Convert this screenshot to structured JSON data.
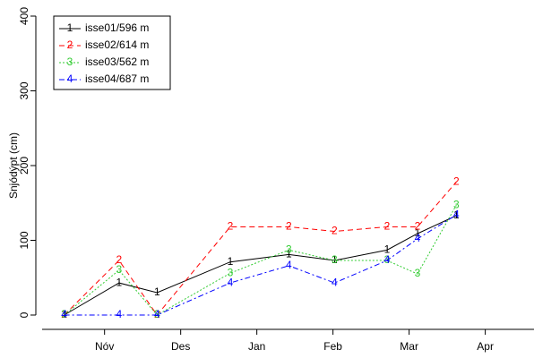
{
  "chart_data": {
    "type": "line",
    "y_label": "Snjódýpt (cm)",
    "x": [
      0.47,
      1.19,
      1.69,
      2.65,
      3.42,
      4.02,
      4.71,
      5.11,
      5.62
    ],
    "series": [
      {
        "name": "isse01/596 m",
        "marker": "1",
        "color": "#000000",
        "dash": "none",
        "values": [
          0,
          43,
          30,
          71,
          81,
          73,
          87,
          109,
          133
        ]
      },
      {
        "name": "isse02/614 m",
        "marker": "2",
        "color": "#ff0000",
        "dash": "6,4",
        "values": [
          0,
          73,
          0,
          118,
          118,
          112,
          118,
          118,
          178
        ]
      },
      {
        "name": "isse03/562 m",
        "marker": "3",
        "color": "#33cc33",
        "dash": "2,2",
        "values": [
          0,
          60,
          0,
          56,
          87,
          73,
          73,
          55,
          147
        ]
      },
      {
        "name": "isse04/687 m",
        "marker": "4",
        "color": "#0000ff",
        "dash": "6,3,2,3",
        "values": [
          0,
          0,
          0,
          43,
          66,
          43,
          73,
          102,
          134
        ]
      }
    ],
    "xlim": [
      0.18,
      6.64
    ],
    "xticks": [
      {
        "value": 1,
        "label": "Nóv"
      },
      {
        "value": 2,
        "label": "Des"
      },
      {
        "value": 3,
        "label": "Jan"
      },
      {
        "value": 4,
        "label": "Feb"
      },
      {
        "value": 5,
        "label": "Mar"
      },
      {
        "value": 6,
        "label": "Apr"
      }
    ],
    "ylim": [
      0,
      400
    ],
    "yticks": [
      0,
      100,
      200,
      300,
      400
    ],
    "grid": false
  }
}
